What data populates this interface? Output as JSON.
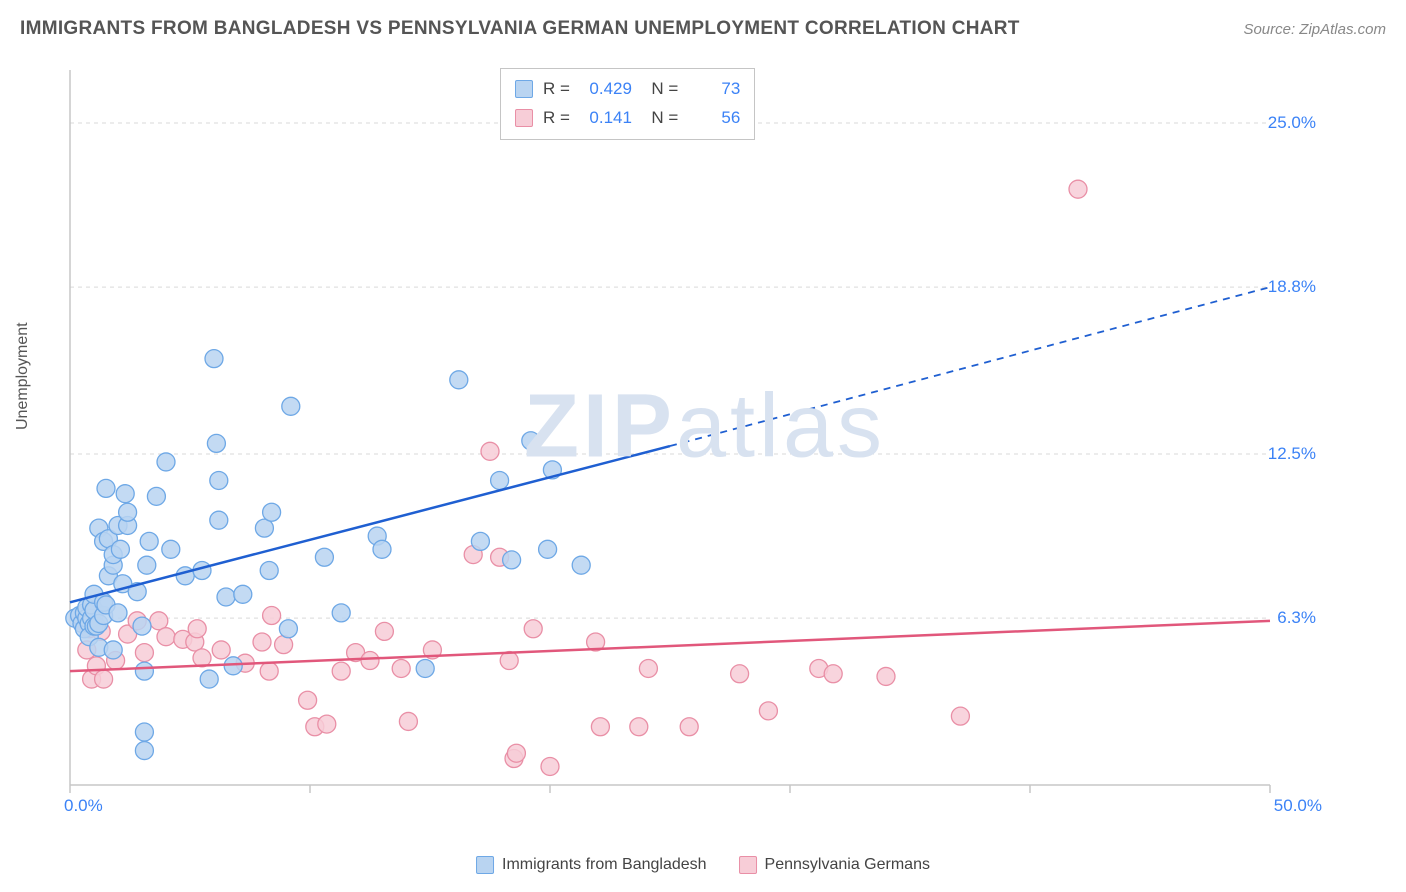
{
  "title": "IMMIGRANTS FROM BANGLADESH VS PENNSYLVANIA GERMAN UNEMPLOYMENT CORRELATION CHART",
  "source": "Source: ZipAtlas.com",
  "watermark": "ZIPatlas",
  "ylabel": "Unemployment",
  "axes": {
    "xmin": 0,
    "xmax": 50,
    "ymin": 0,
    "ymax": 27,
    "x_ticks": [
      0,
      10,
      20,
      30,
      40,
      50
    ],
    "x_tick_labels": [
      "0.0%",
      "",
      "",
      "",
      "",
      "50.0%"
    ],
    "y_grid": [
      6.3,
      12.5,
      18.8,
      25.0
    ],
    "y_labels": [
      "6.3%",
      "12.5%",
      "18.8%",
      "25.0%"
    ],
    "grid_color": "#d9d9d9",
    "tick_color": "#c7c7c7",
    "axis_color": "#c7c7c7"
  },
  "series": [
    {
      "name": "Immigrants from Bangladesh",
      "fill": "#b9d4f1",
      "stroke": "#6ea8e6",
      "line_color": "#1f5fd1",
      "r": 0.429,
      "n": 73,
      "reg_start": {
        "x": 0,
        "y": 6.9
      },
      "reg_solid_end": {
        "x": 25,
        "y": 12.8
      },
      "reg_dash_end": {
        "x": 50,
        "y": 18.8
      },
      "points": [
        [
          0.2,
          6.3
        ],
        [
          0.4,
          6.4
        ],
        [
          0.5,
          6.1
        ],
        [
          0.6,
          5.9
        ],
        [
          0.6,
          6.5
        ],
        [
          0.7,
          6.3
        ],
        [
          0.7,
          6.7
        ],
        [
          0.8,
          6.1
        ],
        [
          0.8,
          5.6
        ],
        [
          0.9,
          6.3
        ],
        [
          0.9,
          6.8
        ],
        [
          1.0,
          6.0
        ],
        [
          1.0,
          6.6
        ],
        [
          1.0,
          7.2
        ],
        [
          1.1,
          6.0
        ],
        [
          1.2,
          6.1
        ],
        [
          1.2,
          9.7
        ],
        [
          1.2,
          5.2
        ],
        [
          1.4,
          6.4
        ],
        [
          1.4,
          6.9
        ],
        [
          1.4,
          9.2
        ],
        [
          1.5,
          6.8
        ],
        [
          1.5,
          11.2
        ],
        [
          1.6,
          7.9
        ],
        [
          1.6,
          9.3
        ],
        [
          1.8,
          8.3
        ],
        [
          1.8,
          8.7
        ],
        [
          1.8,
          5.1
        ],
        [
          2.0,
          6.5
        ],
        [
          2.0,
          9.8
        ],
        [
          2.1,
          8.9
        ],
        [
          2.2,
          7.6
        ],
        [
          2.3,
          11.0
        ],
        [
          2.4,
          9.8
        ],
        [
          2.4,
          10.3
        ],
        [
          2.8,
          7.3
        ],
        [
          3.0,
          6.0
        ],
        [
          3.1,
          4.3
        ],
        [
          3.1,
          2.0
        ],
        [
          3.1,
          1.3
        ],
        [
          3.2,
          8.3
        ],
        [
          3.3,
          9.2
        ],
        [
          3.6,
          10.9
        ],
        [
          4.0,
          12.2
        ],
        [
          4.2,
          8.9
        ],
        [
          4.8,
          7.9
        ],
        [
          5.5,
          8.1
        ],
        [
          5.8,
          4.0
        ],
        [
          6.0,
          16.1
        ],
        [
          6.1,
          12.9
        ],
        [
          6.2,
          11.5
        ],
        [
          6.2,
          10.0
        ],
        [
          6.5,
          7.1
        ],
        [
          6.8,
          4.5
        ],
        [
          7.2,
          7.2
        ],
        [
          8.1,
          9.7
        ],
        [
          8.3,
          8.1
        ],
        [
          8.4,
          10.3
        ],
        [
          9.1,
          5.9
        ],
        [
          9.2,
          14.3
        ],
        [
          10.6,
          8.6
        ],
        [
          11.3,
          6.5
        ],
        [
          12.8,
          9.4
        ],
        [
          13.0,
          8.9
        ],
        [
          14.8,
          4.4
        ],
        [
          16.2,
          15.3
        ],
        [
          17.1,
          9.2
        ],
        [
          17.9,
          11.5
        ],
        [
          18.4,
          8.5
        ],
        [
          19.2,
          13.0
        ],
        [
          19.9,
          8.9
        ],
        [
          20.1,
          11.9
        ],
        [
          21.3,
          8.3
        ]
      ]
    },
    {
      "name": "Pennsylvania Germans",
      "fill": "#f7cdd7",
      "stroke": "#e98fa6",
      "line_color": "#e1577b",
      "r": 0.141,
      "n": 56,
      "reg_start": {
        "x": 0,
        "y": 4.3
      },
      "reg_solid_end": {
        "x": 50,
        "y": 6.2
      },
      "reg_dash_end": null,
      "points": [
        [
          0.5,
          6.2
        ],
        [
          0.7,
          6.1
        ],
        [
          0.7,
          5.1
        ],
        [
          0.8,
          5.9
        ],
        [
          0.9,
          4.0
        ],
        [
          1.0,
          6.4
        ],
        [
          1.0,
          6.0
        ],
        [
          1.1,
          4.5
        ],
        [
          1.3,
          5.8
        ],
        [
          1.4,
          4.0
        ],
        [
          1.9,
          4.7
        ],
        [
          2.4,
          5.7
        ],
        [
          2.8,
          6.2
        ],
        [
          3.1,
          5.0
        ],
        [
          3.7,
          6.2
        ],
        [
          4.0,
          5.6
        ],
        [
          4.7,
          5.5
        ],
        [
          5.2,
          5.4
        ],
        [
          5.3,
          5.9
        ],
        [
          5.5,
          4.8
        ],
        [
          6.3,
          5.1
        ],
        [
          7.3,
          4.6
        ],
        [
          8.0,
          5.4
        ],
        [
          8.3,
          4.3
        ],
        [
          8.4,
          6.4
        ],
        [
          8.9,
          5.3
        ],
        [
          9.9,
          3.2
        ],
        [
          10.2,
          2.2
        ],
        [
          10.7,
          2.3
        ],
        [
          11.3,
          4.3
        ],
        [
          11.9,
          5.0
        ],
        [
          12.5,
          4.7
        ],
        [
          13.1,
          5.8
        ],
        [
          13.8,
          4.4
        ],
        [
          14.1,
          2.4
        ],
        [
          15.1,
          5.1
        ],
        [
          16.8,
          8.7
        ],
        [
          17.5,
          12.6
        ],
        [
          17.9,
          8.6
        ],
        [
          18.3,
          4.7
        ],
        [
          18.5,
          1.0
        ],
        [
          18.6,
          1.2
        ],
        [
          19.3,
          5.9
        ],
        [
          20.0,
          0.7
        ],
        [
          21.9,
          5.4
        ],
        [
          22.1,
          2.2
        ],
        [
          23.7,
          2.2
        ],
        [
          24.1,
          4.4
        ],
        [
          25.8,
          2.2
        ],
        [
          27.9,
          4.2
        ],
        [
          29.1,
          2.8
        ],
        [
          31.2,
          4.4
        ],
        [
          31.8,
          4.2
        ],
        [
          34.0,
          4.1
        ],
        [
          37.1,
          2.6
        ],
        [
          42.0,
          22.5
        ]
      ]
    }
  ],
  "legend_bottom": [
    {
      "label": "Immigrants from Bangladesh",
      "fill": "#b9d4f1",
      "stroke": "#6ea8e6"
    },
    {
      "label": "Pennsylvania Germans",
      "fill": "#f7cdd7",
      "stroke": "#e98fa6"
    }
  ],
  "marker_radius": 9,
  "marker_opacity": 0.85,
  "line_width": 2.5,
  "bg": "#ffffff"
}
